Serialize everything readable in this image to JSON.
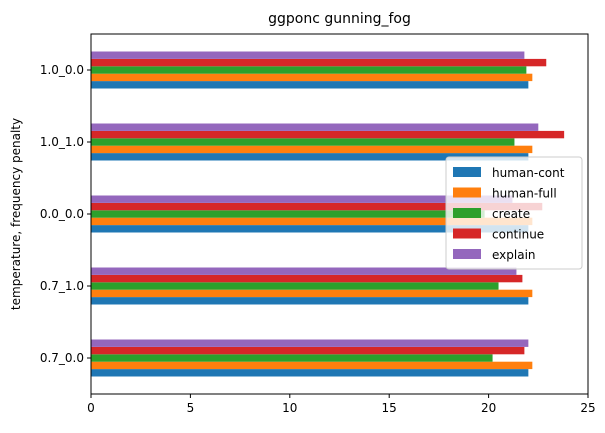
{
  "chart_data": {
    "type": "bar",
    "orientation": "horizontal",
    "title": "ggponc gunning_fog",
    "xlabel": "",
    "ylabel": "temperature, frequency penalty",
    "xlim": [
      0,
      25
    ],
    "xticks": [
      0,
      5,
      10,
      15,
      20,
      25
    ],
    "grid": false,
    "legend_position": "center-right",
    "categories": [
      "0.7_0.0",
      "0.7_1.0",
      "0.0_0.0",
      "1.0_1.0",
      "1.0_0.0"
    ],
    "series": [
      {
        "name": "human-cont",
        "color": "#1f77b4",
        "values": [
          22.0,
          22.0,
          22.0,
          22.0,
          22.0
        ]
      },
      {
        "name": "human-full",
        "color": "#ff7f0e",
        "values": [
          22.2,
          22.2,
          22.2,
          22.2,
          22.2
        ]
      },
      {
        "name": "create",
        "color": "#2ca02c",
        "values": [
          20.2,
          20.5,
          19.8,
          21.3,
          21.9
        ]
      },
      {
        "name": "continue",
        "color": "#d62728",
        "values": [
          21.8,
          21.7,
          22.7,
          23.8,
          22.9
        ]
      },
      {
        "name": "explain",
        "color": "#9467bd",
        "values": [
          22.0,
          21.4,
          21.2,
          22.5,
          21.8
        ]
      }
    ]
  }
}
